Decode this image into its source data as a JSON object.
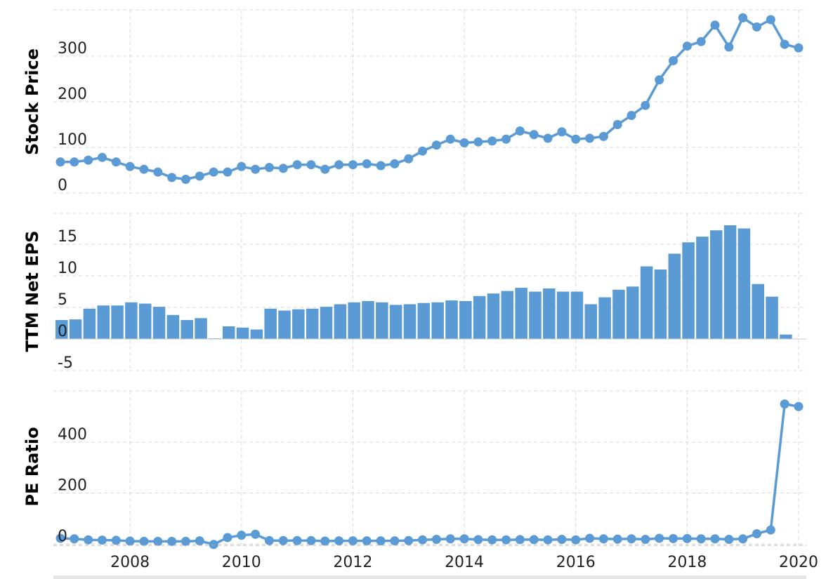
{
  "colors": {
    "series": "#5b9bd5",
    "grid": "#d9d9d9",
    "text": "#222222"
  },
  "chart_data": [
    {
      "type": "line",
      "title": "",
      "ylabel": "Stock Price",
      "ylim": [
        -20,
        400
      ],
      "yticks": [
        0,
        100,
        200,
        300
      ],
      "ytick_labels": [
        "0",
        "100",
        "200",
        "300"
      ],
      "x": [
        2006.75,
        2007.0,
        2007.25,
        2007.5,
        2007.75,
        2008.0,
        2008.25,
        2008.5,
        2008.75,
        2009.0,
        2009.25,
        2009.5,
        2009.75,
        2010.0,
        2010.25,
        2010.5,
        2010.75,
        2011.0,
        2011.25,
        2011.5,
        2011.75,
        2012.0,
        2012.25,
        2012.5,
        2012.75,
        2013.0,
        2013.25,
        2013.5,
        2013.75,
        2014.0,
        2014.25,
        2014.5,
        2014.75,
        2015.0,
        2015.25,
        2015.5,
        2015.75,
        2016.0,
        2016.25,
        2016.5,
        2016.75,
        2017.0,
        2017.25,
        2017.5,
        2017.75,
        2018.0,
        2018.25,
        2018.5,
        2018.75,
        2019.0,
        2019.25,
        2019.5,
        2019.75,
        2020.0
      ],
      "values": [
        68,
        68,
        72,
        78,
        68,
        58,
        52,
        46,
        34,
        30,
        37,
        46,
        46,
        58,
        52,
        56,
        54,
        62,
        62,
        52,
        62,
        62,
        64,
        60,
        64,
        75,
        92,
        105,
        118,
        110,
        112,
        114,
        118,
        136,
        128,
        120,
        134,
        118,
        120,
        124,
        150,
        170,
        192,
        248,
        290,
        322,
        332,
        368,
        320,
        384,
        364,
        380,
        326,
        318
      ]
    },
    {
      "type": "bar",
      "title": "",
      "ylabel": "TTM Net EPS",
      "ylim": [
        -7.5,
        20
      ],
      "yticks": [
        -5,
        0,
        5,
        10,
        15
      ],
      "ytick_labels": [
        "-5",
        "0",
        "5",
        "10",
        "15"
      ],
      "x": [
        2006.75,
        2007.0,
        2007.25,
        2007.5,
        2007.75,
        2008.0,
        2008.25,
        2008.5,
        2008.75,
        2009.0,
        2009.25,
        2009.5,
        2009.75,
        2010.0,
        2010.25,
        2010.5,
        2010.75,
        2011.0,
        2011.25,
        2011.5,
        2011.75,
        2012.0,
        2012.25,
        2012.5,
        2012.75,
        2013.0,
        2013.25,
        2013.5,
        2013.75,
        2014.0,
        2014.25,
        2014.5,
        2014.75,
        2015.0,
        2015.25,
        2015.5,
        2015.75,
        2016.0,
        2016.25,
        2016.5,
        2016.75,
        2017.0,
        2017.25,
        2017.5,
        2017.75,
        2018.0,
        2018.25,
        2018.5,
        2018.75,
        2019.0,
        2019.25,
        2019.5,
        2019.75
      ],
      "values": [
        3.0,
        3.1,
        4.8,
        5.3,
        5.3,
        5.8,
        5.6,
        5.1,
        3.8,
        3.0,
        3.3,
        0.1,
        2.0,
        1.8,
        1.5,
        4.8,
        4.5,
        4.7,
        4.8,
        5.1,
        5.5,
        5.8,
        6.0,
        5.8,
        5.4,
        5.5,
        5.7,
        5.8,
        6.1,
        6.0,
        6.8,
        7.2,
        7.6,
        8.1,
        7.5,
        8.0,
        7.5,
        7.5,
        5.5,
        6.6,
        7.8,
        8.3,
        11.5,
        11.0,
        13.5,
        15.3,
        16.2,
        17.2,
        18.0,
        17.5,
        8.7,
        6.7,
        0.7
      ]
    },
    {
      "type": "line",
      "title": "",
      "ylabel": "PE Ratio",
      "ylim": [
        -20,
        600
      ],
      "yticks": [
        0,
        200,
        400
      ],
      "ytick_labels": [
        "0",
        "200",
        "400"
      ],
      "x": [
        2006.75,
        2007.0,
        2007.25,
        2007.5,
        2007.75,
        2008.0,
        2008.25,
        2008.5,
        2008.75,
        2009.0,
        2009.25,
        2009.5,
        2009.75,
        2010.0,
        2010.25,
        2010.5,
        2010.75,
        2011.0,
        2011.25,
        2011.5,
        2011.75,
        2012.0,
        2012.25,
        2012.5,
        2012.75,
        2013.0,
        2013.25,
        2013.5,
        2013.75,
        2014.0,
        2014.25,
        2014.5,
        2014.75,
        2015.0,
        2015.25,
        2015.5,
        2015.75,
        2016.0,
        2016.25,
        2016.5,
        2016.75,
        2017.0,
        2017.25,
        2017.5,
        2017.75,
        2018.0,
        2018.25,
        2018.5,
        2018.75,
        2019.0,
        2019.25,
        2019.5,
        2019.75,
        2020.0
      ],
      "values": [
        22,
        20,
        16,
        15,
        14,
        11,
        10,
        10,
        10,
        10,
        12,
        -2,
        25,
        34,
        38,
        13,
        13,
        13,
        13,
        11,
        12,
        12,
        12,
        12,
        12,
        13,
        16,
        18,
        20,
        20,
        17,
        16,
        16,
        17,
        17,
        16,
        18,
        16,
        22,
        20,
        19,
        20,
        18,
        22,
        21,
        21,
        20,
        20,
        18,
        20,
        40,
        55,
        550,
        540
      ]
    }
  ],
  "x_axis": {
    "ticks": [
      2008,
      2010,
      2012,
      2014,
      2016,
      2018,
      2020
    ],
    "tick_labels": [
      "2008",
      "2010",
      "2012",
      "2014",
      "2016",
      "2018",
      "2020"
    ],
    "xlim": [
      2006.75,
      2020.0
    ]
  }
}
